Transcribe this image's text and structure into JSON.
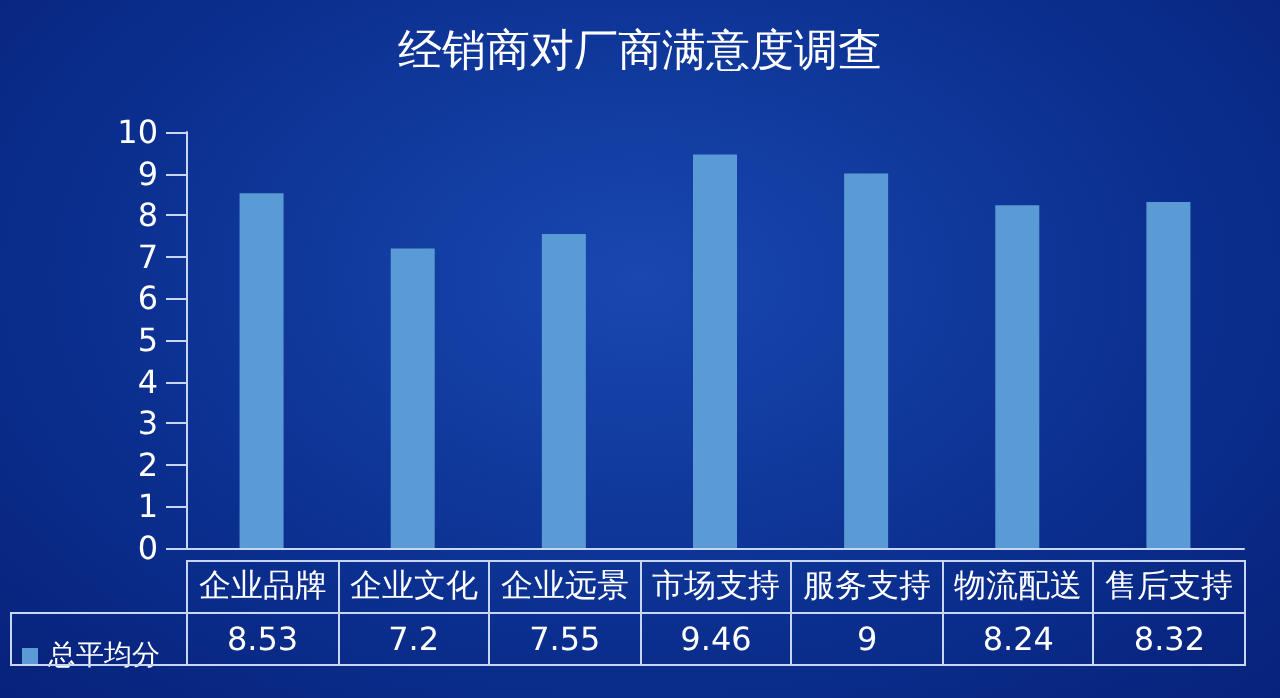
{
  "chart_data": {
    "type": "bar",
    "title": "经销商对厂商满意度调查",
    "categories": [
      "企业品牌",
      "企业文化",
      "企业远景",
      "市场支持",
      "服务支持",
      "物流配送",
      "售后支持"
    ],
    "series": [
      {
        "name": "总平均分",
        "color": "#5b9bd5",
        "values": [
          8.53,
          7.2,
          7.55,
          9.46,
          9,
          8.24,
          8.32
        ]
      }
    ],
    "ylim": [
      0,
      10
    ],
    "yticks": [
      0,
      1,
      2,
      3,
      4,
      5,
      6,
      7,
      8,
      9,
      10
    ],
    "grid": false,
    "legend": "bottom left",
    "data_labels": true
  }
}
